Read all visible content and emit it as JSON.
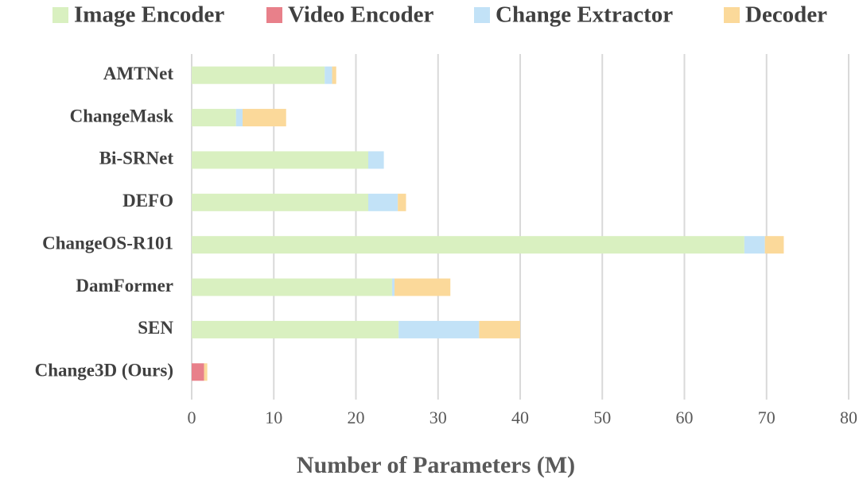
{
  "chart_data": {
    "type": "stacked-horizontal-bar",
    "xlabel": "Number of Parameters (M)",
    "categories": [
      "AMTNet",
      "ChangeMask",
      "Bi-SRNet",
      "DEFO",
      "ChangeOS-R101",
      "DamFormer",
      "SEN",
      "Change3D (Ours)"
    ],
    "series": [
      {
        "name": "Image Encoder",
        "color": "#d9f0c0",
        "values": [
          16.2,
          5.4,
          21.5,
          21.5,
          67.3,
          24.4,
          25.2,
          null
        ]
      },
      {
        "name": "Video Encoder",
        "color": "#e8808a",
        "values": [
          null,
          null,
          null,
          null,
          null,
          null,
          null,
          1.5
        ]
      },
      {
        "name": "Change Extractor",
        "color": "#c2e2f7",
        "values": [
          0.9,
          0.8,
          1.9,
          3.6,
          2.5,
          0.3,
          9.8,
          null
        ]
      },
      {
        "name": "Decoder",
        "color": "#fbd99a",
        "values": [
          0.5,
          5.3,
          null,
          1.0,
          2.3,
          6.8,
          5.0,
          0.4
        ]
      }
    ],
    "xlim": [
      0,
      80
    ],
    "xticks": [
      0,
      10,
      20,
      30,
      40,
      50,
      60,
      70,
      80
    ],
    "grid": true,
    "legend": "top"
  }
}
